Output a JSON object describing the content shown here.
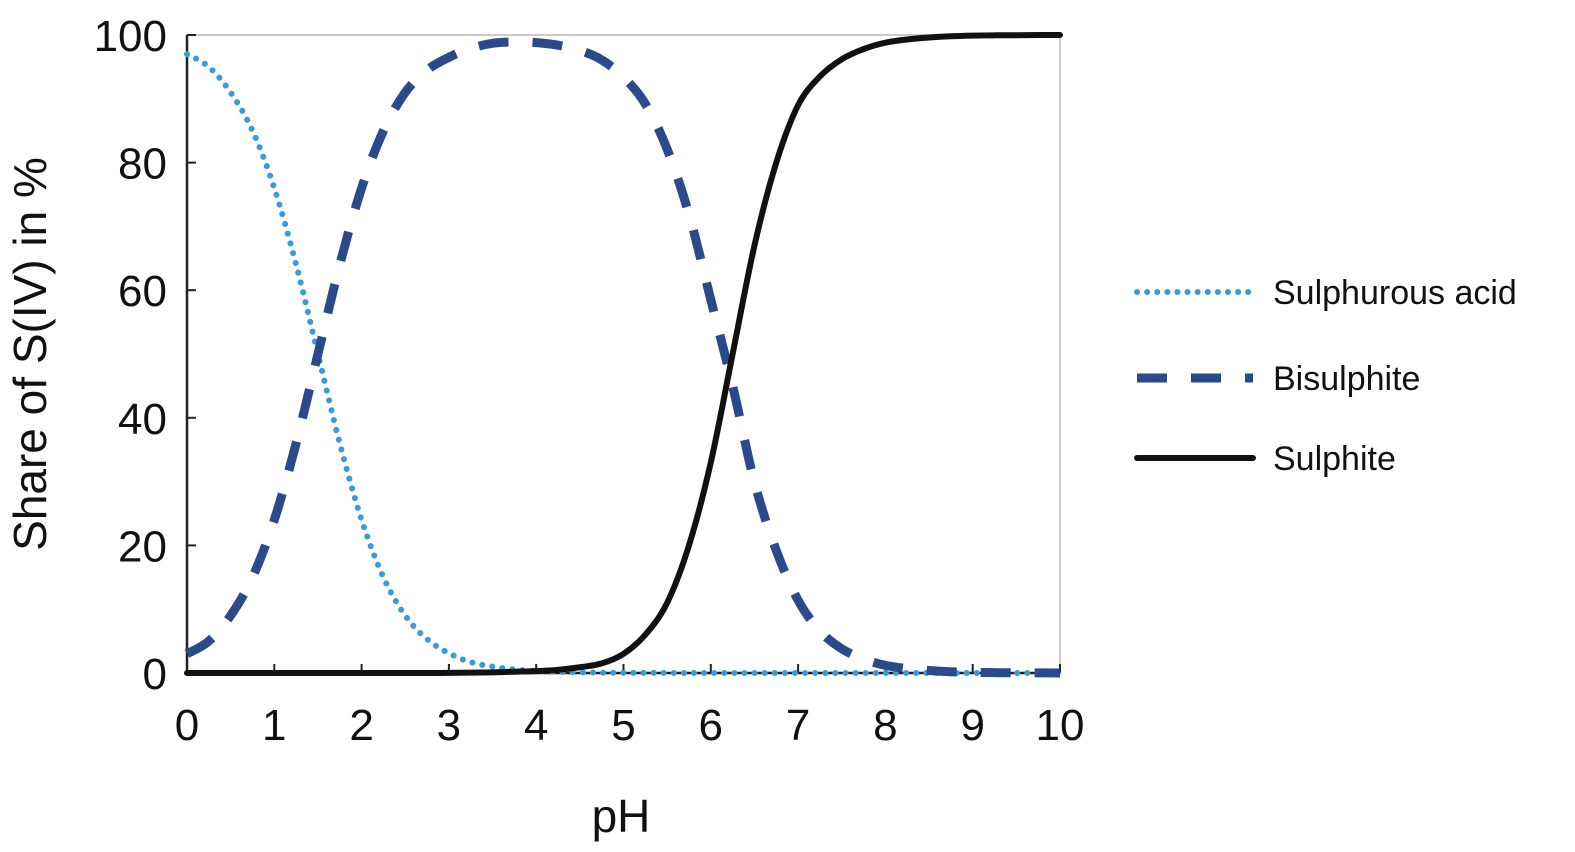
{
  "chart_data": {
    "type": "line",
    "xlabel": "pH",
    "ylabel": "Share of S(IV) in %",
    "xlim": [
      0,
      10
    ],
    "ylim": [
      0,
      100
    ],
    "xticks": [
      0,
      1,
      2,
      3,
      4,
      5,
      6,
      7,
      8,
      9,
      10
    ],
    "yticks": [
      0,
      20,
      40,
      60,
      80,
      100
    ],
    "grid": false,
    "legend_position": "right",
    "x": [
      0,
      0.25,
      0.5,
      0.75,
      1,
      1.25,
      1.5,
      1.75,
      2,
      2.25,
      2.5,
      2.75,
      3,
      3.25,
      3.5,
      3.75,
      4,
      4.25,
      4.5,
      4.75,
      5,
      5.25,
      5.5,
      5.75,
      6,
      6.25,
      6.5,
      6.75,
      7,
      7.25,
      7.5,
      7.75,
      8,
      8.25,
      8.5,
      8.75,
      9,
      9.25,
      9.5,
      9.75,
      10
    ],
    "series": [
      {
        "name": "Sulphurous acid",
        "color": "#3a9bd8",
        "style": "dotted",
        "values": [
          97,
          95,
          91,
          85,
          76,
          64,
          50,
          36,
          24,
          15,
          9,
          5.3,
          3.1,
          1.7,
          1.0,
          0.56,
          0.32,
          0.18,
          0.1,
          0.06,
          0.03,
          0.02,
          0.01,
          0,
          0,
          0,
          0,
          0,
          0,
          0,
          0,
          0,
          0,
          0,
          0,
          0,
          0,
          0,
          0,
          0,
          0
        ]
      },
      {
        "name": "Bisulphite",
        "color": "#2b4a8c",
        "style": "dashed",
        "values": [
          3,
          5,
          9,
          15,
          24,
          36,
          50,
          64,
          76,
          85,
          91,
          94.5,
          96.5,
          97.9,
          98.7,
          98.9,
          98.8,
          98.4,
          97.6,
          96.1,
          93.4,
          89.2,
          82.1,
          71.9,
          58.5,
          45,
          29.9,
          19.2,
          11.4,
          6.6,
          3.8,
          2.2,
          1.2,
          0.7,
          0.4,
          0.2,
          0.1,
          0.05,
          0.03,
          0.02,
          0
        ]
      },
      {
        "name": "Sulphite",
        "color": "#111111",
        "style": "solid",
        "values": [
          0,
          0,
          0,
          0,
          0,
          0,
          0,
          0,
          0,
          0,
          0,
          0,
          0.02,
          0.05,
          0.1,
          0.2,
          0.3,
          0.5,
          0.9,
          1.5,
          3.0,
          6.0,
          11.0,
          20.0,
          33.0,
          50.0,
          67.0,
          80.0,
          89.0,
          93.5,
          96.2,
          97.8,
          98.8,
          99.3,
          99.6,
          99.8,
          99.9,
          99.95,
          99.97,
          99.99,
          100
        ]
      }
    ]
  }
}
